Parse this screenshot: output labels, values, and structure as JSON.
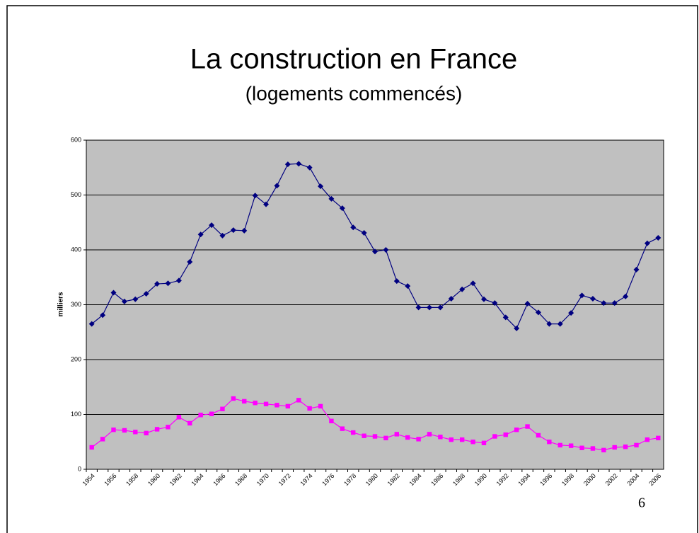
{
  "chart_data": {
    "type": "line",
    "title": "La construction en France",
    "subtitle": "(logements commencés)",
    "ylabel": "milliers",
    "page_number": "6",
    "categories": [
      "1954",
      null,
      "1956",
      null,
      "1958",
      null,
      "1960",
      null,
      "1962",
      null,
      "1964",
      null,
      "1966",
      null,
      "1968",
      null,
      "1970",
      null,
      "1972",
      null,
      "1974",
      null,
      "1976",
      null,
      "1978",
      null,
      "1980",
      null,
      "1982",
      null,
      "1984",
      null,
      "1986",
      null,
      "1988",
      null,
      "1990",
      null,
      "1992",
      null,
      "1994",
      null,
      "1996",
      null,
      "1998",
      null,
      "2000",
      null,
      "2002",
      null,
      "2004",
      null,
      "2006"
    ],
    "series": [
      {
        "color": "#000080",
        "marker": "diamond",
        "values": [
          265,
          281,
          322,
          306,
          310,
          320,
          338,
          339,
          344,
          378,
          428,
          445,
          426,
          436,
          435,
          499,
          483,
          517,
          556,
          557,
          550,
          516,
          493,
          476,
          441,
          431,
          397,
          400,
          343,
          334,
          295,
          295,
          295,
          311,
          328,
          339,
          310,
          303,
          277,
          257,
          302,
          286,
          265,
          265,
          285,
          317,
          311,
          303,
          303,
          315,
          364,
          412,
          422
        ]
      },
      {
        "color": "#ff00ff",
        "marker": "square",
        "values": [
          40,
          55,
          72,
          71,
          68,
          66,
          73,
          77,
          95,
          84,
          99,
          101,
          110,
          129,
          124,
          121,
          119,
          117,
          115,
          126,
          111,
          115,
          88,
          74,
          67,
          61,
          60,
          57,
          64,
          58,
          55,
          64,
          59,
          54,
          54,
          50,
          48,
          60,
          63,
          72,
          78,
          62,
          50,
          44,
          43,
          39,
          38,
          35,
          40,
          41,
          44,
          54,
          57
        ]
      }
    ],
    "ylim": [
      0,
      600
    ],
    "yticks": [
      0,
      100,
      200,
      300,
      400,
      500,
      600
    ],
    "grid": true,
    "plot_background": "#c0c0c0"
  }
}
